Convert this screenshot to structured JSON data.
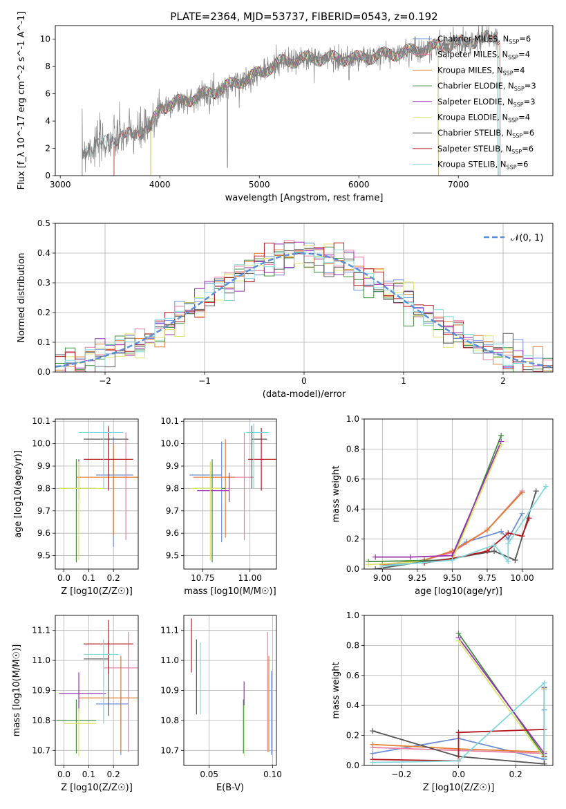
{
  "title": "PLATE=2364, MJD=53737, FIBERID=0543, z=0.192",
  "colors": {
    "Chabrier MILES": "#6b8fd6",
    "Salpeter MILES": "#e87ea3",
    "Kroupa MILES": "#e07b30",
    "Chabrier ELODIE": "#3f8f3f",
    "Salpeter ELODIE": "#9b2fb5",
    "Kroupa ELODIE": "#dde36a",
    "Chabrier STELIB": "#555555",
    "Salpeter STELIB": "#b5171c",
    "Kroupa STELIB": "#7fd8dc"
  },
  "chart_data": [
    {
      "id": "spectrum",
      "type": "line",
      "xlabel": "wavelength [Angstrom, rest frame]",
      "ylabel": "Flux [f_λ 10^-17 erg cm^-2 s^-1 A^-1]",
      "xlim": [
        2950,
        7950
      ],
      "ylim": [
        0,
        11
      ],
      "xticks": [
        3000,
        4000,
        5000,
        6000,
        7000
      ],
      "yticks": [
        0,
        2,
        4,
        6,
        8,
        10
      ],
      "legend": "top-right",
      "series": [
        {
          "name": "Chabrier MILES",
          "nssp": "6"
        },
        {
          "name": "Salpeter MILES",
          "nssp": "4"
        },
        {
          "name": "Kroupa MILES",
          "nssp": "4"
        },
        {
          "name": "Chabrier ELODIE",
          "nssp": "3"
        },
        {
          "name": "Salpeter ELODIE",
          "nssp": "3"
        },
        {
          "name": "Kroupa ELODIE",
          "nssp": "4"
        },
        {
          "name": "Chabrier STELIB",
          "nssp": "6"
        },
        {
          "name": "Salpeter STELIB",
          "nssp": "6"
        },
        {
          "name": "Kroupa STELIB",
          "nssp": "6"
        }
      ],
      "continuum": [
        [
          3220,
          1.8
        ],
        [
          3500,
          2.6
        ],
        [
          3700,
          3.0
        ],
        [
          3900,
          3.4
        ],
        [
          4000,
          5.0
        ],
        [
          4300,
          5.6
        ],
        [
          4600,
          6.3
        ],
        [
          5000,
          7.5
        ],
        [
          5200,
          8.3
        ],
        [
          5500,
          8.6
        ],
        [
          6000,
          8.6
        ],
        [
          6500,
          9.1
        ],
        [
          7000,
          9.7
        ],
        [
          7400,
          10.2
        ]
      ]
    },
    {
      "id": "residuals",
      "type": "step",
      "xlabel": "(data-model)/error",
      "ylabel": "Normed distribution",
      "xlim": [
        -2.5,
        2.5
      ],
      "ylim": [
        0,
        0.5
      ],
      "xticks": [
        -2,
        -1,
        0,
        1,
        2
      ],
      "yticks": [
        0.0,
        0.1,
        0.2,
        0.3,
        0.4,
        0.5
      ],
      "legend_label": "𝒩(0, 1)",
      "legend": "top-right",
      "bin_width": 0.1
    },
    {
      "id": "age-Z",
      "type": "errorbar",
      "xlabel": "Z [log10(Z/Z☉)]",
      "ylabel": "age  [log10(age/yr)]",
      "xlim": [
        -0.035,
        0.3
      ],
      "ylim": [
        9.44,
        10.11
      ],
      "xticks": [
        0.0,
        0.1,
        0.2
      ],
      "yticks": [
        9.5,
        9.6,
        9.7,
        9.8,
        9.9,
        10.0,
        10.1
      ],
      "points": [
        {
          "series": "Chabrier MILES",
          "x": 0.2,
          "xerr": [
            0.07,
            0.08
          ],
          "y": 9.86,
          "yerr": [
            0.32,
            0.17
          ]
        },
        {
          "series": "Salpeter MILES",
          "x": 0.25,
          "xerr": [
            0.05,
            0.05
          ],
          "y": 9.85,
          "yerr": [
            0.28,
            0.2
          ]
        },
        {
          "series": "Kroupa MILES",
          "x": 0.2,
          "xerr": [
            0.15,
            0.1
          ],
          "y": 9.85,
          "yerr": [
            0.26,
            0.15
          ]
        },
        {
          "series": "Chabrier ELODIE",
          "x": 0.05,
          "xerr": [
            0.07,
            0.08
          ],
          "y": 9.8,
          "yerr": [
            0.33,
            0.13
          ]
        },
        {
          "series": "Salpeter ELODIE",
          "x": 0.06,
          "xerr": [
            0.0,
            0.0
          ],
          "y": 9.85,
          "yerr": [
            0.1,
            0.08
          ]
        },
        {
          "series": "Kroupa ELODIE",
          "x": 0.06,
          "xerr": [
            0.08,
            0.1
          ],
          "y": 9.8,
          "yerr": [
            0.32,
            0.12
          ]
        },
        {
          "series": "Chabrier STELIB",
          "x": 0.18,
          "xerr": [
            0.1,
            0.08
          ],
          "y": 10.02,
          "yerr": [
            0.22,
            0.06
          ]
        },
        {
          "series": "Salpeter STELIB",
          "x": 0.18,
          "xerr": [
            0.1,
            0.1
          ],
          "y": 9.93,
          "yerr": [
            0.14,
            0.14
          ]
        },
        {
          "series": "Kroupa STELIB",
          "x": 0.16,
          "xerr": [
            0.1,
            0.08
          ],
          "y": 10.05,
          "yerr": [
            0.25,
            0.05
          ]
        }
      ]
    },
    {
      "id": "age-mass",
      "type": "errorbar",
      "xlabel": "mass [log10(M/M☉)]",
      "ylabel": "",
      "xlim": [
        10.65,
        11.14
      ],
      "ylim": [
        9.44,
        10.11
      ],
      "xticks": [
        10.75,
        11.0
      ],
      "yticks": [
        9.5,
        9.6,
        9.7,
        9.8,
        9.9,
        10.0,
        10.1
      ],
      "points": [
        {
          "series": "Chabrier MILES",
          "x": 10.85,
          "xerr": [
            0.17,
            0.0
          ],
          "y": 9.86,
          "yerr": [
            0.3,
            0.15
          ]
        },
        {
          "series": "Salpeter MILES",
          "x": 10.97,
          "xerr": [
            0.17,
            0.05
          ],
          "y": 9.85,
          "yerr": [
            0.28,
            0.2
          ]
        },
        {
          "series": "Kroupa MILES",
          "x": 10.87,
          "xerr": [
            0.17,
            0.05
          ],
          "y": 9.85,
          "yerr": [
            0.27,
            0.17
          ]
        },
        {
          "series": "Chabrier ELODIE",
          "x": 10.8,
          "xerr": [
            0.1,
            0.07
          ],
          "y": 9.8,
          "yerr": [
            0.33,
            0.13
          ]
        },
        {
          "series": "Salpeter ELODIE",
          "x": 10.89,
          "xerr": [
            0.17,
            0.0
          ],
          "y": 9.79,
          "yerr": [
            0.05,
            0.08
          ]
        },
        {
          "series": "Kroupa ELODIE",
          "x": 10.79,
          "xerr": [
            0.1,
            0.06
          ],
          "y": 9.8,
          "yerr": [
            0.32,
            0.12
          ]
        },
        {
          "series": "Chabrier STELIB",
          "x": 11.01,
          "xerr": [
            0.0,
            0.08
          ],
          "y": 10.02,
          "yerr": [
            0.22,
            0.06
          ]
        },
        {
          "series": "Salpeter STELIB",
          "x": 11.06,
          "xerr": [
            0.07,
            0.08
          ],
          "y": 9.93,
          "yerr": [
            0.14,
            0.14
          ]
        },
        {
          "series": "Kroupa STELIB",
          "x": 11.02,
          "xerr": [
            0.04,
            0.08
          ],
          "y": 10.05,
          "yerr": [
            0.25,
            0.04
          ]
        }
      ]
    },
    {
      "id": "weight-age",
      "type": "line",
      "xlabel": "age  [log10(age/yr)]",
      "ylabel": "mass weight",
      "xlim": [
        8.87,
        10.22
      ],
      "ylim": [
        0,
        1
      ],
      "xticks": [
        9.0,
        9.25,
        9.5,
        9.75,
        10.0
      ],
      "yticks": [
        0.0,
        0.2,
        0.4,
        0.6,
        0.8,
        1.0
      ],
      "series": [
        {
          "name": "Chabrier MILES",
          "x": [
            9.0,
            9.3,
            9.5,
            9.6,
            9.85,
            9.9,
            10.0
          ],
          "y": [
            0.02,
            0.06,
            0.12,
            0.18,
            0.25,
            0.2,
            0.37
          ]
        },
        {
          "name": "Salpeter MILES",
          "x": [
            9.0,
            9.3,
            9.5,
            9.75,
            10.0
          ],
          "y": [
            0.03,
            0.06,
            0.11,
            0.26,
            0.52
          ]
        },
        {
          "name": "Kroupa MILES",
          "x": [
            9.0,
            9.3,
            9.5,
            9.75,
            10.0
          ],
          "y": [
            0.03,
            0.06,
            0.12,
            0.26,
            0.51
          ]
        },
        {
          "name": "Chabrier ELODIE",
          "x": [
            8.9,
            9.5,
            9.85
          ],
          "y": [
            0.05,
            0.06,
            0.89
          ]
        },
        {
          "name": "Salpeter ELODIE",
          "x": [
            8.95,
            9.2,
            9.5,
            9.85
          ],
          "y": [
            0.08,
            0.08,
            0.09,
            0.85
          ]
        },
        {
          "name": "Kroupa ELODIE",
          "x": [
            8.9,
            9.5,
            9.85
          ],
          "y": [
            0.03,
            0.06,
            0.83
          ]
        },
        {
          "name": "Chabrier STELIB",
          "x": [
            8.95,
            9.3,
            9.5,
            9.8,
            9.95,
            10.1
          ],
          "y": [
            0.0,
            0.05,
            0.07,
            0.12,
            0.06,
            0.52
          ]
        },
        {
          "name": "Salpeter STELIB",
          "x": [
            9.3,
            9.5,
            9.75,
            9.9,
            10.0,
            10.05
          ],
          "y": [
            0.04,
            0.07,
            0.12,
            0.24,
            0.22,
            0.34
          ]
        },
        {
          "name": "Kroupa STELIB",
          "x": [
            9.0,
            9.5,
            9.8,
            9.9,
            9.9,
            10.17
          ],
          "y": [
            0.02,
            0.06,
            0.16,
            0.05,
            0.17,
            0.55
          ]
        }
      ]
    },
    {
      "id": "mass-Z",
      "type": "errorbar",
      "xlabel": "Z [log10(Z/Z☉)]",
      "ylabel": "mass [log10(M/M☉)]",
      "xlim": [
        -0.035,
        0.3
      ],
      "ylim": [
        10.65,
        11.15
      ],
      "xticks": [
        0.0,
        0.1,
        0.2
      ],
      "yticks": [
        10.7,
        10.8,
        10.9,
        11.0,
        11.1
      ],
      "points": [
        {
          "series": "Chabrier MILES",
          "x": 0.23,
          "xerr": [
            0.1,
            0.03
          ],
          "y": 10.855,
          "yerr": [
            0.17,
            0.04
          ]
        },
        {
          "series": "Salpeter MILES",
          "x": 0.26,
          "xerr": [
            0.1,
            0.05
          ],
          "y": 10.975,
          "yerr": [
            0.28,
            0.12
          ]
        },
        {
          "series": "Kroupa MILES",
          "x": 0.23,
          "xerr": [
            0.17,
            0.07
          ],
          "y": 10.875,
          "yerr": [
            0.18,
            0.14
          ]
        },
        {
          "series": "Chabrier ELODIE",
          "x": 0.05,
          "xerr": [
            0.08,
            0.08
          ],
          "y": 10.8,
          "yerr": [
            0.11,
            0.07
          ]
        },
        {
          "series": "Salpeter ELODIE",
          "x": 0.06,
          "xerr": [
            0.08,
            0.11
          ],
          "y": 10.89,
          "yerr": [
            0.06,
            0.07
          ]
        },
        {
          "series": "Kroupa ELODIE",
          "x": 0.06,
          "xerr": [
            0.06,
            0.07
          ],
          "y": 10.79,
          "yerr": [
            0.11,
            0.05
          ]
        },
        {
          "series": "Chabrier STELIB",
          "x": 0.18,
          "xerr": [
            0.1,
            0.0
          ],
          "y": 11.005,
          "yerr": [
            0.19,
            0.06
          ]
        },
        {
          "series": "Salpeter STELIB",
          "x": 0.18,
          "xerr": [
            0.1,
            0.1
          ],
          "y": 11.055,
          "yerr": [
            0.1,
            0.08
          ]
        },
        {
          "series": "Kroupa STELIB",
          "x": 0.16,
          "xerr": [
            0.08,
            0.06
          ],
          "y": 11.02,
          "yerr": [
            0.23,
            0.05
          ]
        }
      ]
    },
    {
      "id": "mass-EBV",
      "type": "errorbar",
      "xlabel": "E(B-V)",
      "ylabel": "",
      "xlim": [
        0.03,
        0.103
      ],
      "ylim": [
        10.65,
        11.15
      ],
      "xticks": [
        0.05,
        0.1
      ],
      "yticks": [
        10.7,
        10.8,
        10.9,
        11.0,
        11.1
      ],
      "points": [
        {
          "series": "Chabrier MILES",
          "x": 0.099,
          "xerr": [
            0,
            0
          ],
          "y": 10.855,
          "yerr": [
            0.17,
            0.11
          ]
        },
        {
          "series": "Salpeter MILES",
          "x": 0.096,
          "xerr": [
            0,
            0
          ],
          "y": 10.975,
          "yerr": [
            0.28,
            0.12
          ]
        },
        {
          "series": "Kroupa MILES",
          "x": 0.097,
          "xerr": [
            0,
            0
          ],
          "y": 10.875,
          "yerr": [
            0.18,
            0.14
          ]
        },
        {
          "series": "Chabrier ELODIE",
          "x": 0.077,
          "xerr": [
            0,
            0
          ],
          "y": 10.8,
          "yerr": [
            0.11,
            0.07
          ]
        },
        {
          "series": "Salpeter ELODIE",
          "x": 0.0775,
          "xerr": [
            0,
            0
          ],
          "y": 10.89,
          "yerr": [
            0.04,
            0.04
          ]
        },
        {
          "series": "Kroupa ELODIE",
          "x": 0.0778,
          "xerr": [
            0,
            0
          ],
          "y": 10.79,
          "yerr": [
            0.11,
            0.06
          ]
        },
        {
          "series": "Chabrier STELIB",
          "x": 0.04,
          "xerr": [
            0,
            0
          ],
          "y": 10.95,
          "yerr": [
            0.13,
            0.12
          ]
        },
        {
          "series": "Salpeter STELIB",
          "x": 0.036,
          "xerr": [
            0,
            0
          ],
          "y": 11.05,
          "yerr": [
            0.09,
            0.09
          ]
        },
        {
          "series": "Kroupa STELIB",
          "x": 0.043,
          "xerr": [
            0,
            0
          ],
          "y": 10.93,
          "yerr": [
            0.11,
            0.13
          ]
        }
      ]
    },
    {
      "id": "weight-Z",
      "type": "line",
      "xlabel": "Z [log10(Z/Z☉)]",
      "ylabel": "mass weight",
      "xlim": [
        -0.33,
        0.33
      ],
      "ylim": [
        0,
        1
      ],
      "xticks": [
        -0.2,
        0.0,
        0.2
      ],
      "yticks": [
        0.0,
        0.2,
        0.4,
        0.6,
        0.8,
        1.0
      ],
      "series": [
        {
          "name": "Chabrier MILES",
          "x": [
            -0.3,
            0.0,
            0.3,
            0.3
          ],
          "y": [
            0.08,
            0.18,
            0.04,
            0.37
          ]
        },
        {
          "name": "Salpeter MILES",
          "x": [
            -0.3,
            0.0,
            0.3,
            0.3
          ],
          "y": [
            0.12,
            0.1,
            0.08,
            0.52
          ]
        },
        {
          "name": "Kroupa MILES",
          "x": [
            -0.3,
            0.0,
            0.3,
            0.3
          ],
          "y": [
            0.14,
            0.11,
            0.09,
            0.51
          ]
        },
        {
          "name": "Chabrier ELODIE",
          "x": [
            0.0,
            0.3
          ],
          "y": [
            0.88,
            0.06
          ]
        },
        {
          "name": "Salpeter ELODIE",
          "x": [
            0.0,
            0.3
          ],
          "y": [
            0.85,
            0.08
          ]
        },
        {
          "name": "Kroupa ELODIE",
          "x": [
            0.0,
            0.3
          ],
          "y": [
            0.83,
            0.05
          ]
        },
        {
          "name": "Chabrier STELIB",
          "x": [
            -0.3,
            0.0,
            0.3,
            0.3
          ],
          "y": [
            0.23,
            0.06,
            0.01,
            0.52
          ]
        },
        {
          "name": "Salpeter STELIB",
          "x": [
            -0.3,
            0.0,
            0.0,
            0.3,
            0.3
          ],
          "y": [
            0.04,
            0.03,
            0.22,
            0.24,
            0.06
          ]
        },
        {
          "name": "Kroupa STELIB",
          "x": [
            -0.3,
            0.0,
            0.3,
            0.3
          ],
          "y": [
            0.02,
            0.03,
            0.55,
            0.05
          ]
        }
      ]
    }
  ]
}
